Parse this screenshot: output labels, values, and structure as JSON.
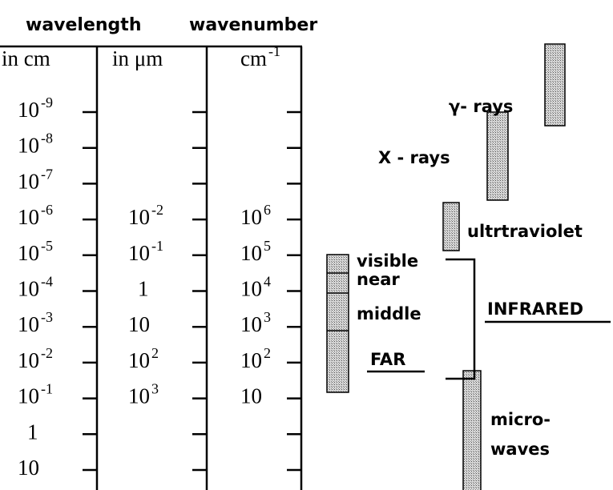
{
  "headers": [
    "wavelength",
    "wavenumber"
  ],
  "columns": [
    {
      "heading": "in cm",
      "labels": [
        {
          "base": "10",
          "exp": "-9"
        },
        {
          "base": "10",
          "exp": "-8"
        },
        {
          "base": "10",
          "exp": "-7"
        },
        {
          "base": "10",
          "exp": "-6"
        },
        {
          "base": "10",
          "exp": "-5"
        },
        {
          "base": "10",
          "exp": "-4"
        },
        {
          "base": "10",
          "exp": "-3"
        },
        {
          "base": "10",
          "exp": "-2"
        },
        {
          "base": "10",
          "exp": "-1"
        },
        {
          "base": "1"
        },
        {
          "base": "10"
        }
      ]
    },
    {
      "heading": "in  μm",
      "labels": [
        null,
        null,
        null,
        {
          "base": "10",
          "exp": "-2"
        },
        {
          "base": "10",
          "exp": "-1"
        },
        {
          "base": "1"
        },
        {
          "base": "10"
        },
        {
          "base": "10",
          "exp": "2"
        },
        {
          "base": "10",
          "exp": "3"
        },
        null,
        null
      ]
    },
    {
      "heading": {
        "base": "cm",
        "exp": "-1"
      },
      "labels": [
        null,
        null,
        null,
        {
          "base": "10",
          "exp": "6"
        },
        {
          "base": "10",
          "exp": "5"
        },
        {
          "base": "10",
          "exp": "4"
        },
        {
          "base": "10",
          "exp": "3"
        },
        {
          "base": "10",
          "exp": "2"
        },
        {
          "base": "10"
        },
        null,
        null
      ]
    }
  ],
  "bands": {
    "gamma": "γ- rays",
    "xray": "X - rays",
    "uv": "ultrtraviolet",
    "visible": "visible",
    "near": "near",
    "middle": "middle",
    "far": "FAR",
    "infrared": "INFRARED",
    "micro1": "micro-",
    "micro2": "waves"
  }
}
